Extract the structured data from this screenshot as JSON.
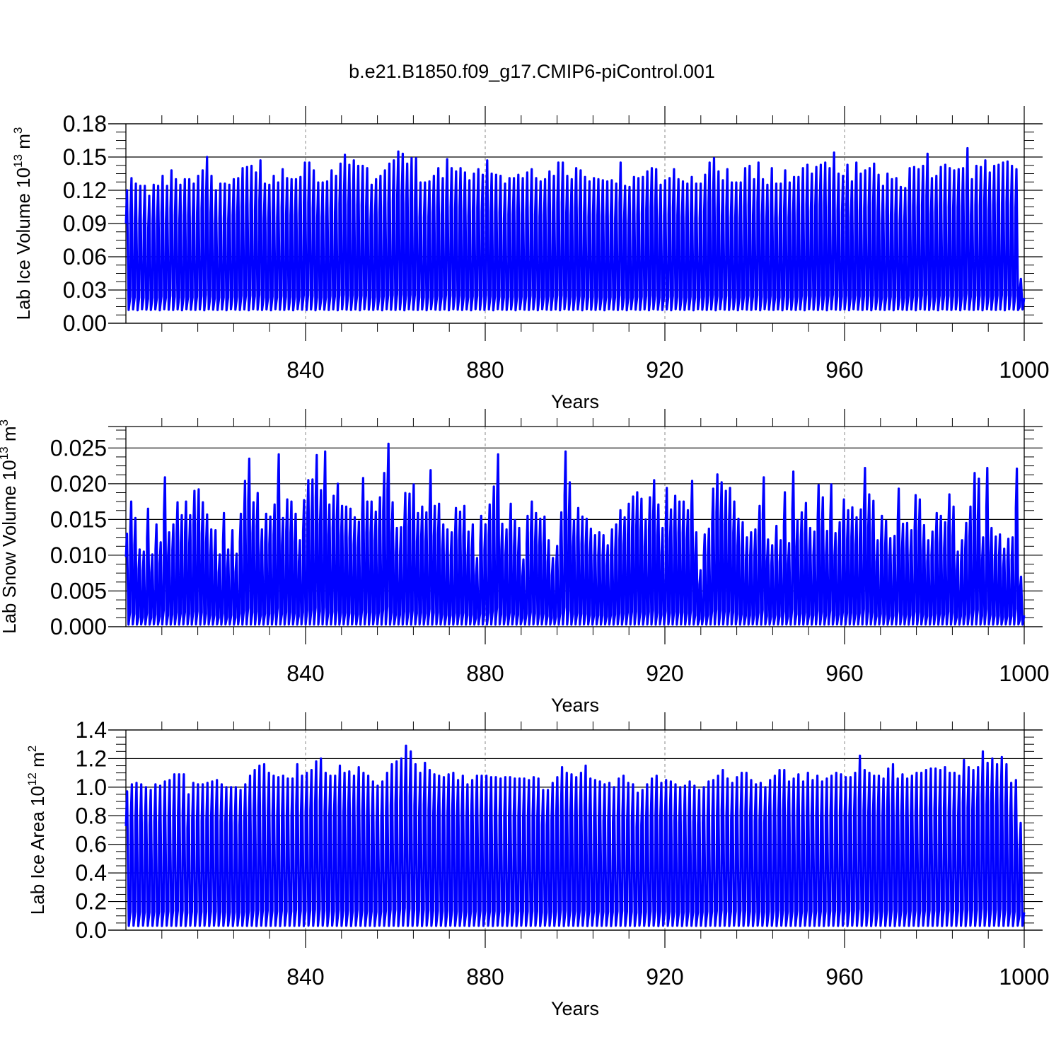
{
  "title": "b.e21.B1850.f09_g17.CMIP6-piControl.001",
  "line_color": "#0000ff",
  "chart_data": [
    {
      "type": "line",
      "ylabel": "Lab Ice Volume 10",
      "ylabel_exp": "13",
      "ylabel_unit": " m",
      "ylabel_unit_exp": "3",
      "xlabel": "Years",
      "xlim": [
        800,
        1000
      ],
      "ylim": [
        0,
        0.18
      ],
      "yticks": [
        0.0,
        0.03,
        0.06,
        0.09,
        0.12,
        0.15,
        0.18
      ],
      "ytick_labels": [
        "0.00",
        "0.03",
        "0.06",
        "0.09",
        "0.12",
        "0.15",
        "0.18"
      ],
      "xticks": [
        840,
        880,
        920,
        960,
        1000
      ],
      "xtick_labels": [
        "840",
        "880",
        "920",
        "960",
        "1000"
      ],
      "grid_x": [
        840,
        880,
        920,
        960
      ],
      "series": [
        {
          "x_start": 800,
          "x_end": 1000,
          "minimum": 0.012,
          "annual_peaks": [
            0.12,
            0.131,
            0.126,
            0.124,
            0.124,
            0.115,
            0.125,
            0.124,
            0.133,
            0.124,
            0.138,
            0.13,
            0.125,
            0.13,
            0.13,
            0.126,
            0.133,
            0.138,
            0.15,
            0.133,
            0.12,
            0.126,
            0.126,
            0.125,
            0.13,
            0.131,
            0.14,
            0.141,
            0.142,
            0.136,
            0.147,
            0.126,
            0.125,
            0.133,
            0.127,
            0.139,
            0.131,
            0.13,
            0.13,
            0.132,
            0.145,
            0.145,
            0.138,
            0.127,
            0.127,
            0.128,
            0.138,
            0.133,
            0.144,
            0.152,
            0.143,
            0.147,
            0.142,
            0.142,
            0.14,
            0.125,
            0.13,
            0.133,
            0.138,
            0.144,
            0.147,
            0.155,
            0.153,
            0.144,
            0.149,
            0.149,
            0.127,
            0.127,
            0.128,
            0.133,
            0.14,
            0.131,
            0.148,
            0.14,
            0.137,
            0.14,
            0.136,
            0.129,
            0.135,
            0.139,
            0.134,
            0.147,
            0.135,
            0.134,
            0.133,
            0.126,
            0.131,
            0.131,
            0.134,
            0.131,
            0.136,
            0.139,
            0.131,
            0.128,
            0.13,
            0.137,
            0.133,
            0.145,
            0.145,
            0.133,
            0.13,
            0.14,
            0.138,
            0.132,
            0.128,
            0.131,
            0.13,
            0.129,
            0.128,
            0.129,
            0.126,
            0.145,
            0.124,
            0.123,
            0.132,
            0.131,
            0.132,
            0.137,
            0.14,
            0.139,
            0.125,
            0.129,
            0.131,
            0.139,
            0.13,
            0.128,
            0.126,
            0.132,
            0.126,
            0.126,
            0.134,
            0.145,
            0.149,
            0.137,
            0.129,
            0.139,
            0.127,
            0.127,
            0.127,
            0.14,
            0.142,
            0.13,
            0.145,
            0.13,
            0.125,
            0.14,
            0.126,
            0.126,
            0.138,
            0.127,
            0.132,
            0.132,
            0.14,
            0.143,
            0.135,
            0.141,
            0.143,
            0.145,
            0.14,
            0.154,
            0.135,
            0.133,
            0.143,
            0.128,
            0.145,
            0.135,
            0.138,
            0.14,
            0.144,
            0.134,
            0.124,
            0.135,
            0.13,
            0.131,
            0.123,
            0.122,
            0.14,
            0.141,
            0.139,
            0.142,
            0.153,
            0.131,
            0.133,
            0.141,
            0.143,
            0.14,
            0.138,
            0.139,
            0.14,
            0.158,
            0.13,
            0.142,
            0.141,
            0.147,
            0.136,
            0.142,
            0.143,
            0.145,
            0.146,
            0.142,
            0.139,
            0.04
          ]
        }
      ]
    },
    {
      "type": "line",
      "ylabel": "Lab Snow Volume 10",
      "ylabel_exp": "13",
      "ylabel_unit": " m",
      "ylabel_unit_exp": "3",
      "xlabel": "Years",
      "xlim": [
        800,
        1000
      ],
      "ylim": [
        0,
        0.028
      ],
      "yticks": [
        0.0,
        0.005,
        0.01,
        0.015,
        0.02,
        0.025
      ],
      "ytick_labels": [
        "0.000",
        "0.005",
        "0.010",
        "0.015",
        "0.020",
        "0.025"
      ],
      "xticks": [
        840,
        880,
        920,
        960,
        1000
      ],
      "xtick_labels": [
        "840",
        "880",
        "920",
        "960",
        "1000"
      ],
      "grid_x": [
        840,
        880,
        920,
        960
      ],
      "series": [
        {
          "x_start": 800,
          "x_end": 1000,
          "minimum": 0.0003,
          "annual_peaks": [
            0.013,
            0.0175,
            0.0152,
            0.0108,
            0.0105,
            0.0165,
            0.0101,
            0.0143,
            0.0118,
            0.0209,
            0.0132,
            0.0143,
            0.0174,
            0.0156,
            0.0175,
            0.0156,
            0.019,
            0.0192,
            0.0174,
            0.0157,
            0.0136,
            0.0135,
            0.0101,
            0.0159,
            0.0108,
            0.0135,
            0.0102,
            0.0158,
            0.0204,
            0.0235,
            0.0174,
            0.0187,
            0.0136,
            0.0158,
            0.0154,
            0.0171,
            0.0241,
            0.0152,
            0.0178,
            0.0175,
            0.0158,
            0.0121,
            0.0177,
            0.0205,
            0.0206,
            0.024,
            0.0191,
            0.0245,
            0.0171,
            0.0183,
            0.02,
            0.0169,
            0.0168,
            0.0165,
            0.0153,
            0.0147,
            0.0208,
            0.0175,
            0.0175,
            0.0161,
            0.0181,
            0.0215,
            0.0256,
            0.0174,
            0.0138,
            0.0139,
            0.0187,
            0.0186,
            0.0199,
            0.0159,
            0.0168,
            0.016,
            0.0219,
            0.0169,
            0.0172,
            0.0143,
            0.0136,
            0.0132,
            0.0166,
            0.0161,
            0.0169,
            0.0133,
            0.0143,
            0.0096,
            0.0155,
            0.0143,
            0.0171,
            0.0196,
            0.0241,
            0.0144,
            0.0136,
            0.0172,
            0.0149,
            0.0138,
            0.0094,
            0.0155,
            0.0175,
            0.0159,
            0.0151,
            0.0154,
            0.0121,
            0.0096,
            0.0113,
            0.016,
            0.0245,
            0.0202,
            0.0149,
            0.0166,
            0.0154,
            0.0151,
            0.0137,
            0.0128,
            0.0132,
            0.0128,
            0.0114,
            0.0136,
            0.0143,
            0.0163,
            0.0153,
            0.0172,
            0.0182,
            0.0188,
            0.0179,
            0.015,
            0.0181,
            0.0205,
            0.0171,
            0.0138,
            0.0194,
            0.0164,
            0.0183,
            0.0175,
            0.0175,
            0.0163,
            0.0204,
            0.0132,
            0.0079,
            0.0129,
            0.0137,
            0.0193,
            0.0213,
            0.0202,
            0.019,
            0.0194,
            0.0175,
            0.0151,
            0.0146,
            0.0125,
            0.0132,
            0.0136,
            0.0169,
            0.0209,
            0.0122,
            0.0114,
            0.0141,
            0.0121,
            0.0188,
            0.0117,
            0.0217,
            0.0149,
            0.016,
            0.0173,
            0.0138,
            0.0133,
            0.0198,
            0.0181,
            0.0134,
            0.0199,
            0.0131,
            0.0146,
            0.0178,
            0.0163,
            0.0167,
            0.0153,
            0.0164,
            0.0222,
            0.0185,
            0.0176,
            0.0121,
            0.0155,
            0.0148,
            0.0124,
            0.0127,
            0.0193,
            0.0144,
            0.0145,
            0.0135,
            0.0184,
            0.0178,
            0.0142,
            0.0121,
            0.0133,
            0.0159,
            0.0155,
            0.0146,
            0.0185,
            0.0168,
            0.0105,
            0.0121,
            0.0145,
            0.0168,
            0.0215,
            0.0207,
            0.0125,
            0.0222,
            0.0138,
            0.0126,
            0.0129,
            0.0109,
            0.0123,
            0.0125,
            0.0221,
            0.007
          ]
        }
      ]
    },
    {
      "type": "line",
      "ylabel": "Lab Ice Area 10",
      "ylabel_exp": "12",
      "ylabel_unit": " m",
      "ylabel_unit_exp": "2",
      "xlabel": "Years",
      "xlim": [
        800,
        1000
      ],
      "ylim": [
        0,
        1.4
      ],
      "yticks": [
        0.0,
        0.2,
        0.4,
        0.6,
        0.8,
        1.0,
        1.2,
        1.4
      ],
      "ytick_labels": [
        "0.0",
        "0.2",
        "0.4",
        "0.6",
        "0.8",
        "1.0",
        "1.2",
        "1.4"
      ],
      "xticks": [
        840,
        880,
        920,
        960,
        1000
      ],
      "xtick_labels": [
        "840",
        "880",
        "920",
        "960",
        "1000"
      ],
      "grid_x": [
        840,
        880,
        920,
        960
      ],
      "series": [
        {
          "x_start": 800,
          "x_end": 1000,
          "minimum": 0.03,
          "annual_peaks": [
            0.97,
            1.02,
            1.03,
            1.02,
            1.0,
            0.98,
            1.02,
            1.01,
            1.04,
            1.05,
            1.09,
            1.09,
            1.09,
            0.95,
            1.03,
            1.02,
            1.02,
            1.03,
            1.04,
            1.05,
            1.02,
            1.0,
            1.0,
            1.0,
            0.98,
            1.02,
            1.08,
            1.12,
            1.15,
            1.16,
            1.1,
            1.08,
            1.07,
            1.08,
            1.06,
            1.06,
            1.16,
            1.08,
            1.1,
            1.12,
            1.18,
            1.2,
            1.1,
            1.08,
            1.08,
            1.15,
            1.1,
            1.11,
            1.08,
            1.14,
            1.1,
            1.08,
            1.04,
            1.01,
            1.04,
            1.1,
            1.16,
            1.18,
            1.2,
            1.29,
            1.25,
            1.16,
            1.1,
            1.17,
            1.12,
            1.09,
            1.08,
            1.07,
            1.09,
            1.1,
            1.05,
            1.08,
            1.02,
            1.05,
            1.08,
            1.08,
            1.08,
            1.07,
            1.07,
            1.06,
            1.07,
            1.07,
            1.06,
            1.06,
            1.06,
            1.05,
            1.07,
            1.06,
            0.98,
            0.98,
            1.03,
            1.07,
            1.14,
            1.1,
            1.09,
            1.07,
            1.1,
            1.15,
            1.06,
            1.05,
            1.04,
            1.02,
            1.03,
            1.0,
            1.06,
            1.08,
            1.03,
            1.02,
            0.96,
            0.98,
            1.02,
            1.06,
            1.08,
            1.03,
            1.05,
            1.04,
            1.02,
            1.0,
            1.01,
            1.04,
            1.01,
            0.98,
            1.0,
            1.04,
            1.05,
            1.08,
            1.12,
            1.06,
            1.03,
            1.07,
            1.1,
            1.1,
            1.05,
            1.02,
            1.03,
            1.0,
            1.05,
            1.08,
            1.12,
            1.12,
            1.04,
            1.06,
            1.09,
            1.04,
            1.1,
            1.05,
            1.08,
            1.04,
            1.06,
            1.08,
            1.1,
            1.09,
            1.07,
            1.07,
            1.1,
            1.22,
            1.12,
            1.1,
            1.08,
            1.08,
            1.06,
            1.13,
            1.16,
            1.06,
            1.09,
            1.06,
            1.08,
            1.1,
            1.1,
            1.12,
            1.13,
            1.13,
            1.12,
            1.14,
            1.1,
            1.1,
            1.08,
            1.19,
            1.14,
            1.12,
            1.14,
            1.25,
            1.17,
            1.2,
            1.16,
            1.21,
            1.16,
            1.03,
            1.05,
            0.75
          ]
        }
      ]
    }
  ]
}
